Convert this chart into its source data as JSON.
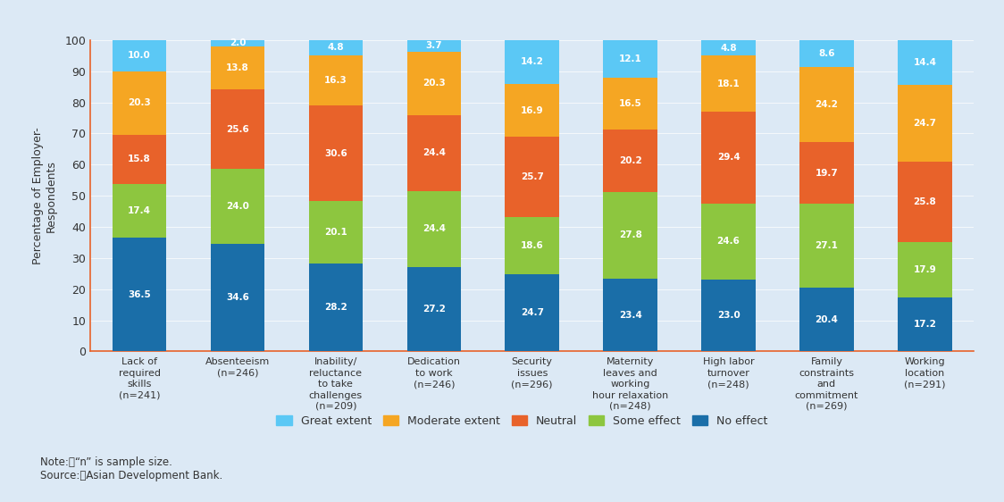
{
  "categories": [
    "Lack of\nrequired\nskills\n(n=241)",
    "Absenteeism\n(n=246)",
    "Inability/\nreluctance\nto take\nchallenges\n(n=209)",
    "Dedication\nto work\n(n=246)",
    "Security\nissues\n(n=296)",
    "Maternity\nleaves and\nworking\nhour relaxation\n(n=248)",
    "High labor\nturnover\n(n=248)",
    "Family\nconstraints\nand\ncommitment\n(n=269)",
    "Working\nlocation\n(n=291)"
  ],
  "series": {
    "No effect": [
      36.5,
      34.6,
      28.2,
      27.2,
      24.7,
      23.4,
      23.0,
      20.4,
      17.2
    ],
    "Some effect": [
      17.4,
      24.0,
      20.1,
      24.4,
      18.6,
      27.8,
      24.6,
      27.1,
      17.9
    ],
    "Neutral": [
      15.8,
      25.6,
      30.6,
      24.4,
      25.7,
      20.2,
      29.4,
      19.7,
      25.8
    ],
    "Moderate extent": [
      20.3,
      13.8,
      16.3,
      20.3,
      16.9,
      16.5,
      18.1,
      24.2,
      24.7
    ],
    "Great extent": [
      10.0,
      2.0,
      4.8,
      3.7,
      14.2,
      12.1,
      4.8,
      8.6,
      14.4
    ]
  },
  "colors": {
    "No effect": "#1a6ea8",
    "Some effect": "#8dc63f",
    "Neutral": "#e8622a",
    "Moderate extent": "#f5a623",
    "Great extent": "#5bc8f5"
  },
  "legend_order": [
    "Great extent",
    "Moderate extent",
    "Neutral",
    "Some effect",
    "No effect"
  ],
  "ylabel": "Percentage of Employer-\nRespondents",
  "ylim": [
    0,
    100
  ],
  "yticks": [
    0,
    10,
    20,
    30,
    40,
    50,
    60,
    70,
    80,
    90,
    100
  ],
  "background_color": "#dce9f5",
  "note": "Note:\t“n” is sample size.\nSource:\tAsian Development Bank."
}
